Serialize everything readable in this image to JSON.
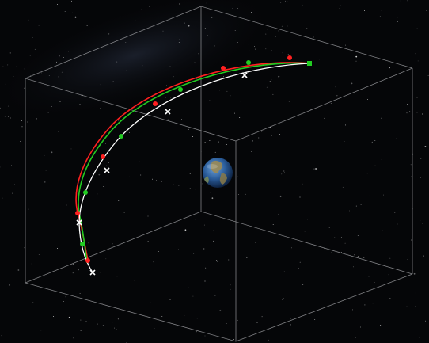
{
  "viewer": {
    "colors": {
      "background": "#050608",
      "box_edges": "#a9aaae",
      "measured_track": "#ff2020",
      "estimated_track": "#22cc22",
      "predicted_track": "#ffffff",
      "earth_ocean": "#2a5c9a",
      "earth_land": "#9a8a55"
    },
    "icons": {
      "measured_marker": "red-dot-icon",
      "estimated_marker": "green-dot-icon",
      "predicted_marker": "white-cross-icon",
      "start_marker": "green-square-icon"
    },
    "tracks": {
      "measured_point_count": 8,
      "estimated_point_count": 8,
      "predicted_point_count": 6
    }
  }
}
